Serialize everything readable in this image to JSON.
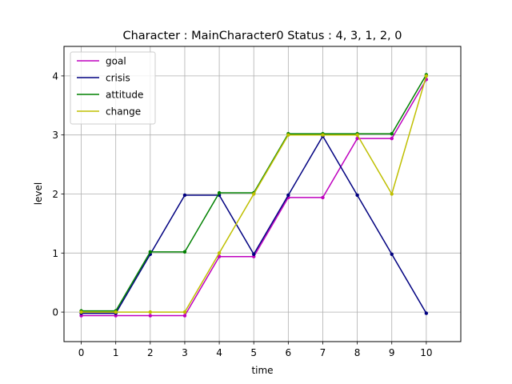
{
  "chart_data": {
    "type": "line",
    "title": "Character : MainCharacter0 Status : 4, 3, 1, 2, 0",
    "xlabel": "time",
    "ylabel": "level",
    "xlim": [
      -0.5,
      11
    ],
    "ylim": [
      -0.5,
      4.5
    ],
    "x_ticks": [
      0,
      1,
      2,
      3,
      4,
      5,
      6,
      7,
      8,
      9,
      10
    ],
    "y_ticks": [
      0,
      1,
      2,
      3,
      4
    ],
    "grid": true,
    "legend_position": "top-left",
    "x": [
      0,
      1,
      2,
      3,
      4,
      5,
      6,
      7,
      8,
      9,
      10
    ],
    "series": [
      {
        "name": "goal",
        "color": "#bf00bf",
        "values": [
          -0.06,
          -0.06,
          -0.06,
          -0.06,
          0.94,
          0.94,
          1.94,
          1.94,
          2.94,
          2.94,
          3.94
        ]
      },
      {
        "name": "crisis",
        "color": "#000080",
        "values": [
          -0.02,
          -0.02,
          0.98,
          1.98,
          1.98,
          0.98,
          1.98,
          2.98,
          1.98,
          0.98,
          -0.02
        ]
      },
      {
        "name": "attitude",
        "color": "#008000",
        "values": [
          0.02,
          0.02,
          1.02,
          1.02,
          2.02,
          2.02,
          3.02,
          3.02,
          3.02,
          3.02,
          4.02
        ]
      },
      {
        "name": "change",
        "color": "#bfbf00",
        "values": [
          0,
          0,
          0,
          0,
          1,
          2,
          3,
          3,
          3,
          2,
          4
        ]
      }
    ]
  }
}
